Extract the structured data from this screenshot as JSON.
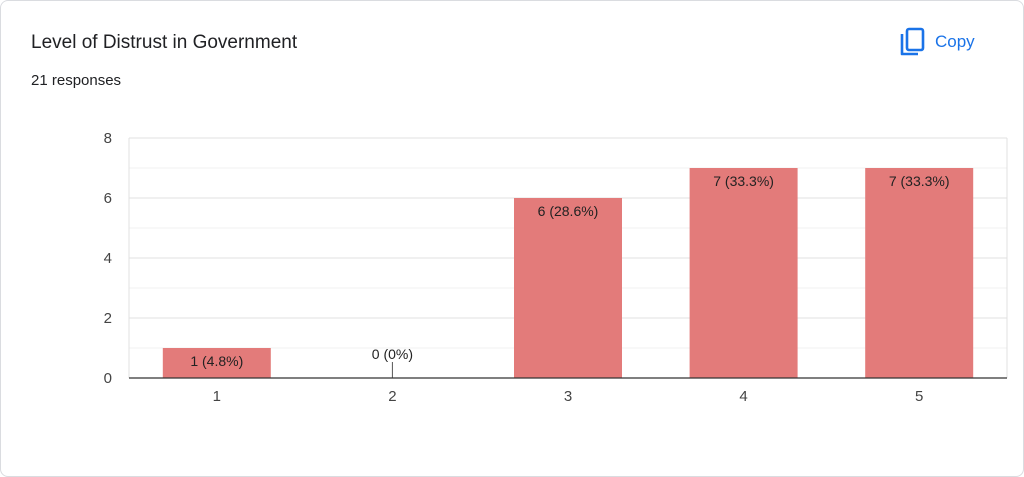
{
  "header": {
    "title": "Level of Distrust in Government",
    "responses": "21 responses",
    "copy_label": "Copy",
    "copy_icon": "copy-icon"
  },
  "colors": {
    "bar": "#e37b7a",
    "accent": "#1a73e8",
    "grid": "#e8e8e8",
    "axis": "#333333",
    "text": "#202124"
  },
  "chart_data": {
    "type": "bar",
    "categories": [
      "1",
      "2",
      "3",
      "4",
      "5"
    ],
    "values": [
      1,
      0,
      6,
      7,
      7
    ],
    "data_labels": [
      "1 (4.8%)",
      "0 (0%)",
      "6 (28.6%)",
      "7 (33.3%)",
      "7 (33.3%)"
    ],
    "yticks": [
      0,
      2,
      4,
      6,
      8
    ],
    "ylim": [
      0,
      8
    ],
    "grid": true,
    "title": "Level of Distrust in Government",
    "xlabel": "",
    "ylabel": ""
  }
}
